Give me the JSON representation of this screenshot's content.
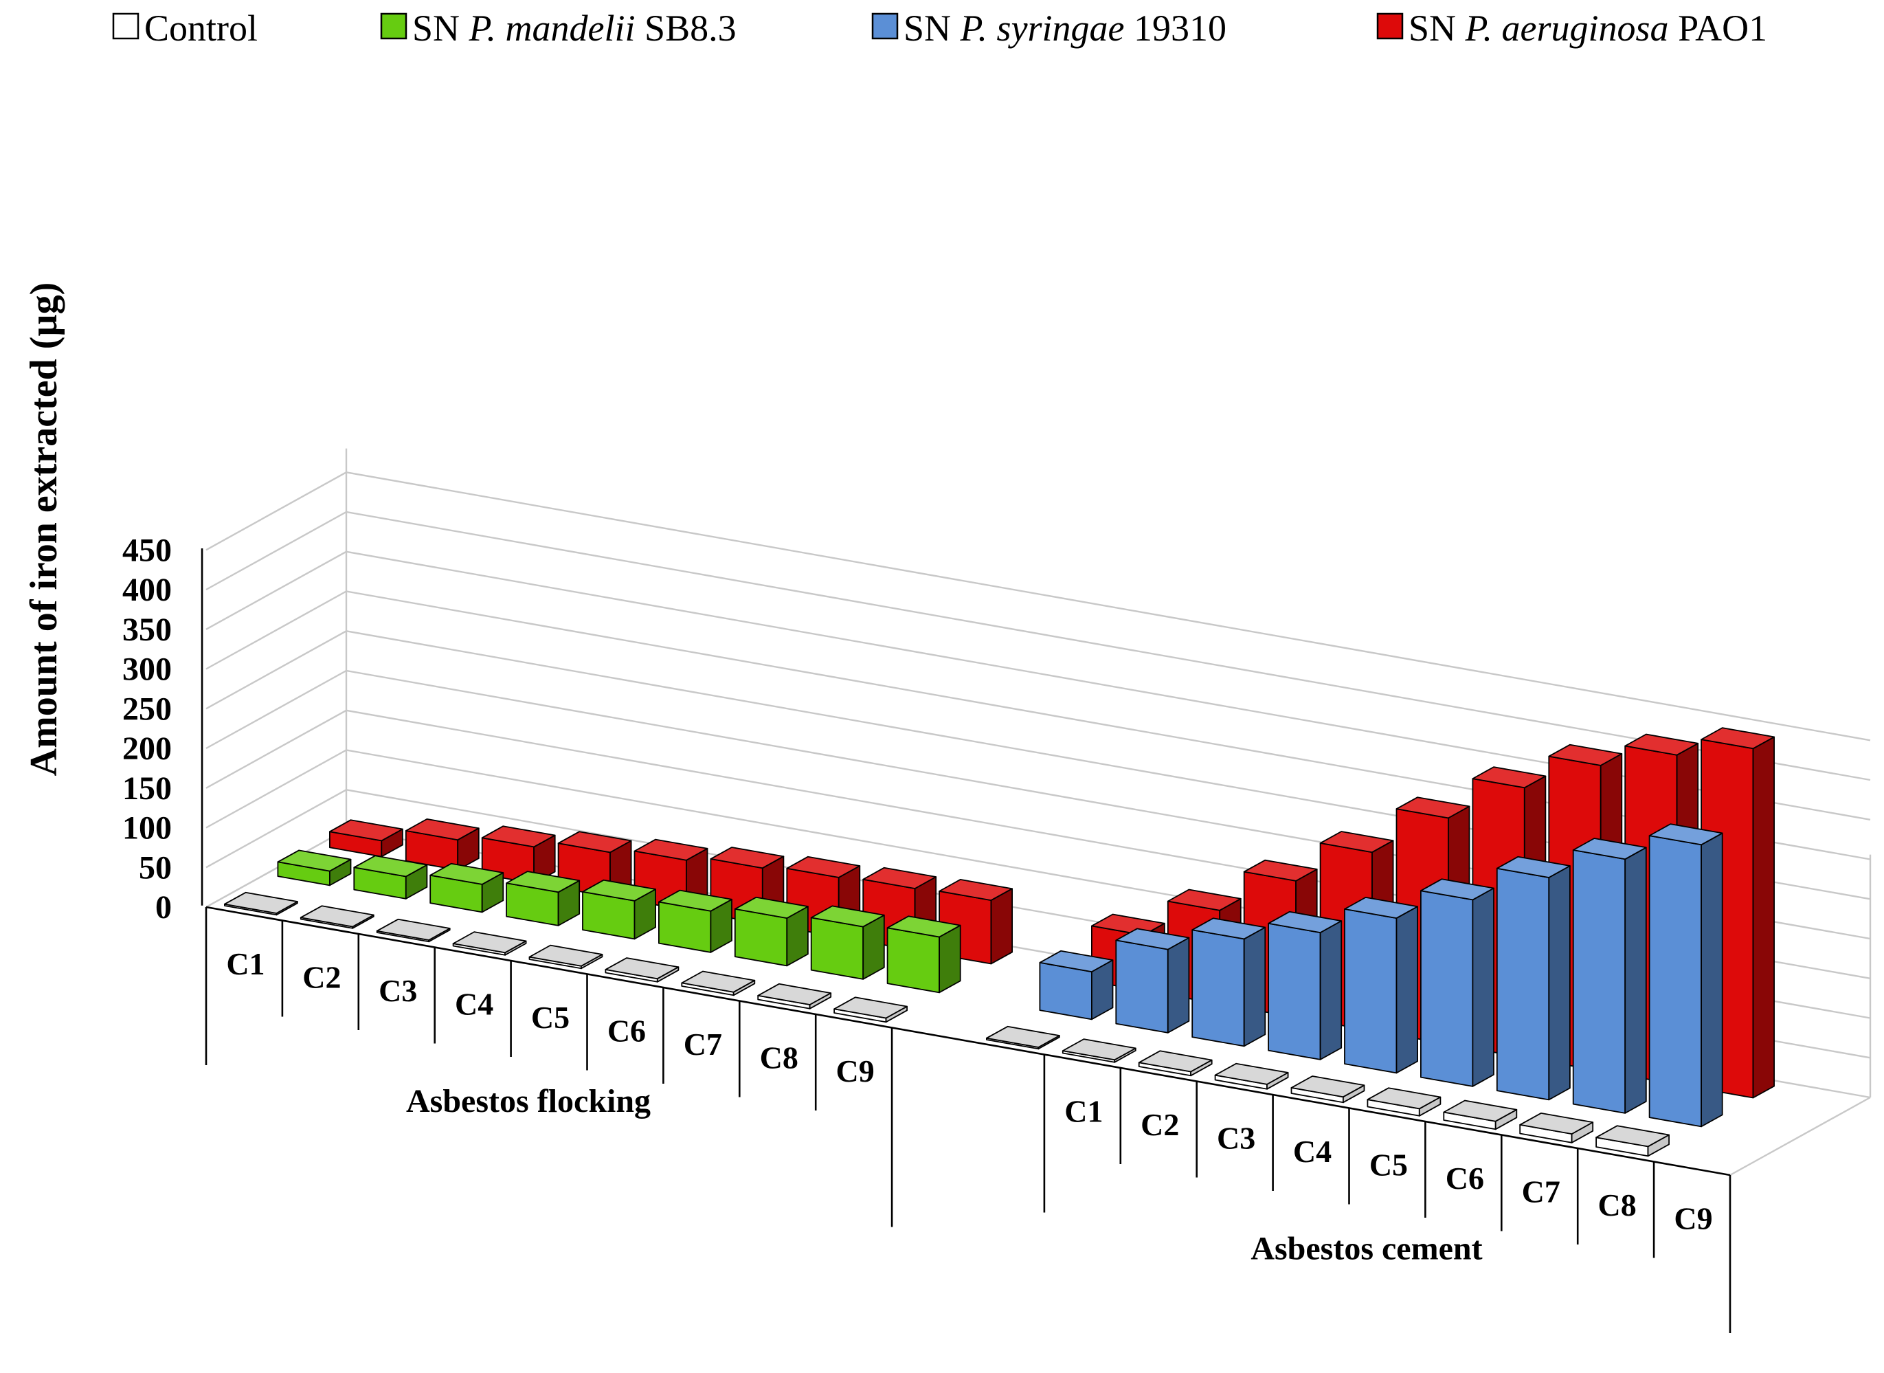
{
  "chart_data": {
    "type": "bar",
    "style": "3d-grouped",
    "title": "",
    "ylabel": "Amount of iron extracted (µg)",
    "xlabel": "",
    "ylim": [
      0,
      450
    ],
    "yticks": [
      0,
      50,
      100,
      150,
      200,
      250,
      300,
      350,
      400,
      450
    ],
    "legend_position": "top",
    "legend": [
      {
        "key": "control",
        "prefix": "",
        "species": "",
        "suffix": "Control",
        "color": "#ffffff"
      },
      {
        "key": "mandelii",
        "prefix": "SN ",
        "species": "P. mandelii",
        "suffix": " SB8.3",
        "color": "#66cc11"
      },
      {
        "key": "syringae",
        "prefix": "SN ",
        "species": "P. syringae",
        "suffix": " 19310",
        "color": "#5b8fd6"
      },
      {
        "key": "aeruginosa",
        "prefix": "SN ",
        "species": "P. aeruginosa",
        "suffix": " PAO1",
        "color": "#dd0a0a"
      }
    ],
    "groups": [
      {
        "name": "Asbestos flocking",
        "categories": [
          "C1",
          "C2",
          "C3",
          "C4",
          "C5",
          "C6",
          "C7",
          "C8",
          "C9"
        ],
        "series": [
          {
            "name": "Control",
            "values": [
              2,
              2,
              2,
              3,
              3,
              4,
              4,
              5,
              5
            ]
          },
          {
            "name": "SN P. mandelii SB8.3",
            "values": [
              18,
              28,
              35,
              42,
              48,
              52,
              60,
              66,
              70
            ]
          },
          {
            "name": "SN P. aeruginosa PAO1",
            "values": [
              20,
              38,
              46,
              56,
              63,
              70,
              75,
              78,
              80
            ]
          }
        ]
      },
      {
        "name": "Asbestos cement",
        "categories": [
          "C1",
          "C2",
          "C3",
          "C4",
          "C5",
          "C6",
          "C7",
          "C8",
          "C9"
        ],
        "series": [
          {
            "name": "Control",
            "values": [
              2,
              3,
              5,
              6,
              7,
              9,
              10,
              11,
              12
            ]
          },
          {
            "name": "SN P. syringae 19310",
            "values": [
              60,
              105,
              135,
              160,
              195,
              235,
              280,
              320,
              355
            ]
          },
          {
            "name": "SN P. aeruginosa PAO1",
            "values": [
              70,
              118,
              172,
              225,
              285,
              340,
              385,
              415,
              440
            ]
          }
        ]
      }
    ]
  }
}
